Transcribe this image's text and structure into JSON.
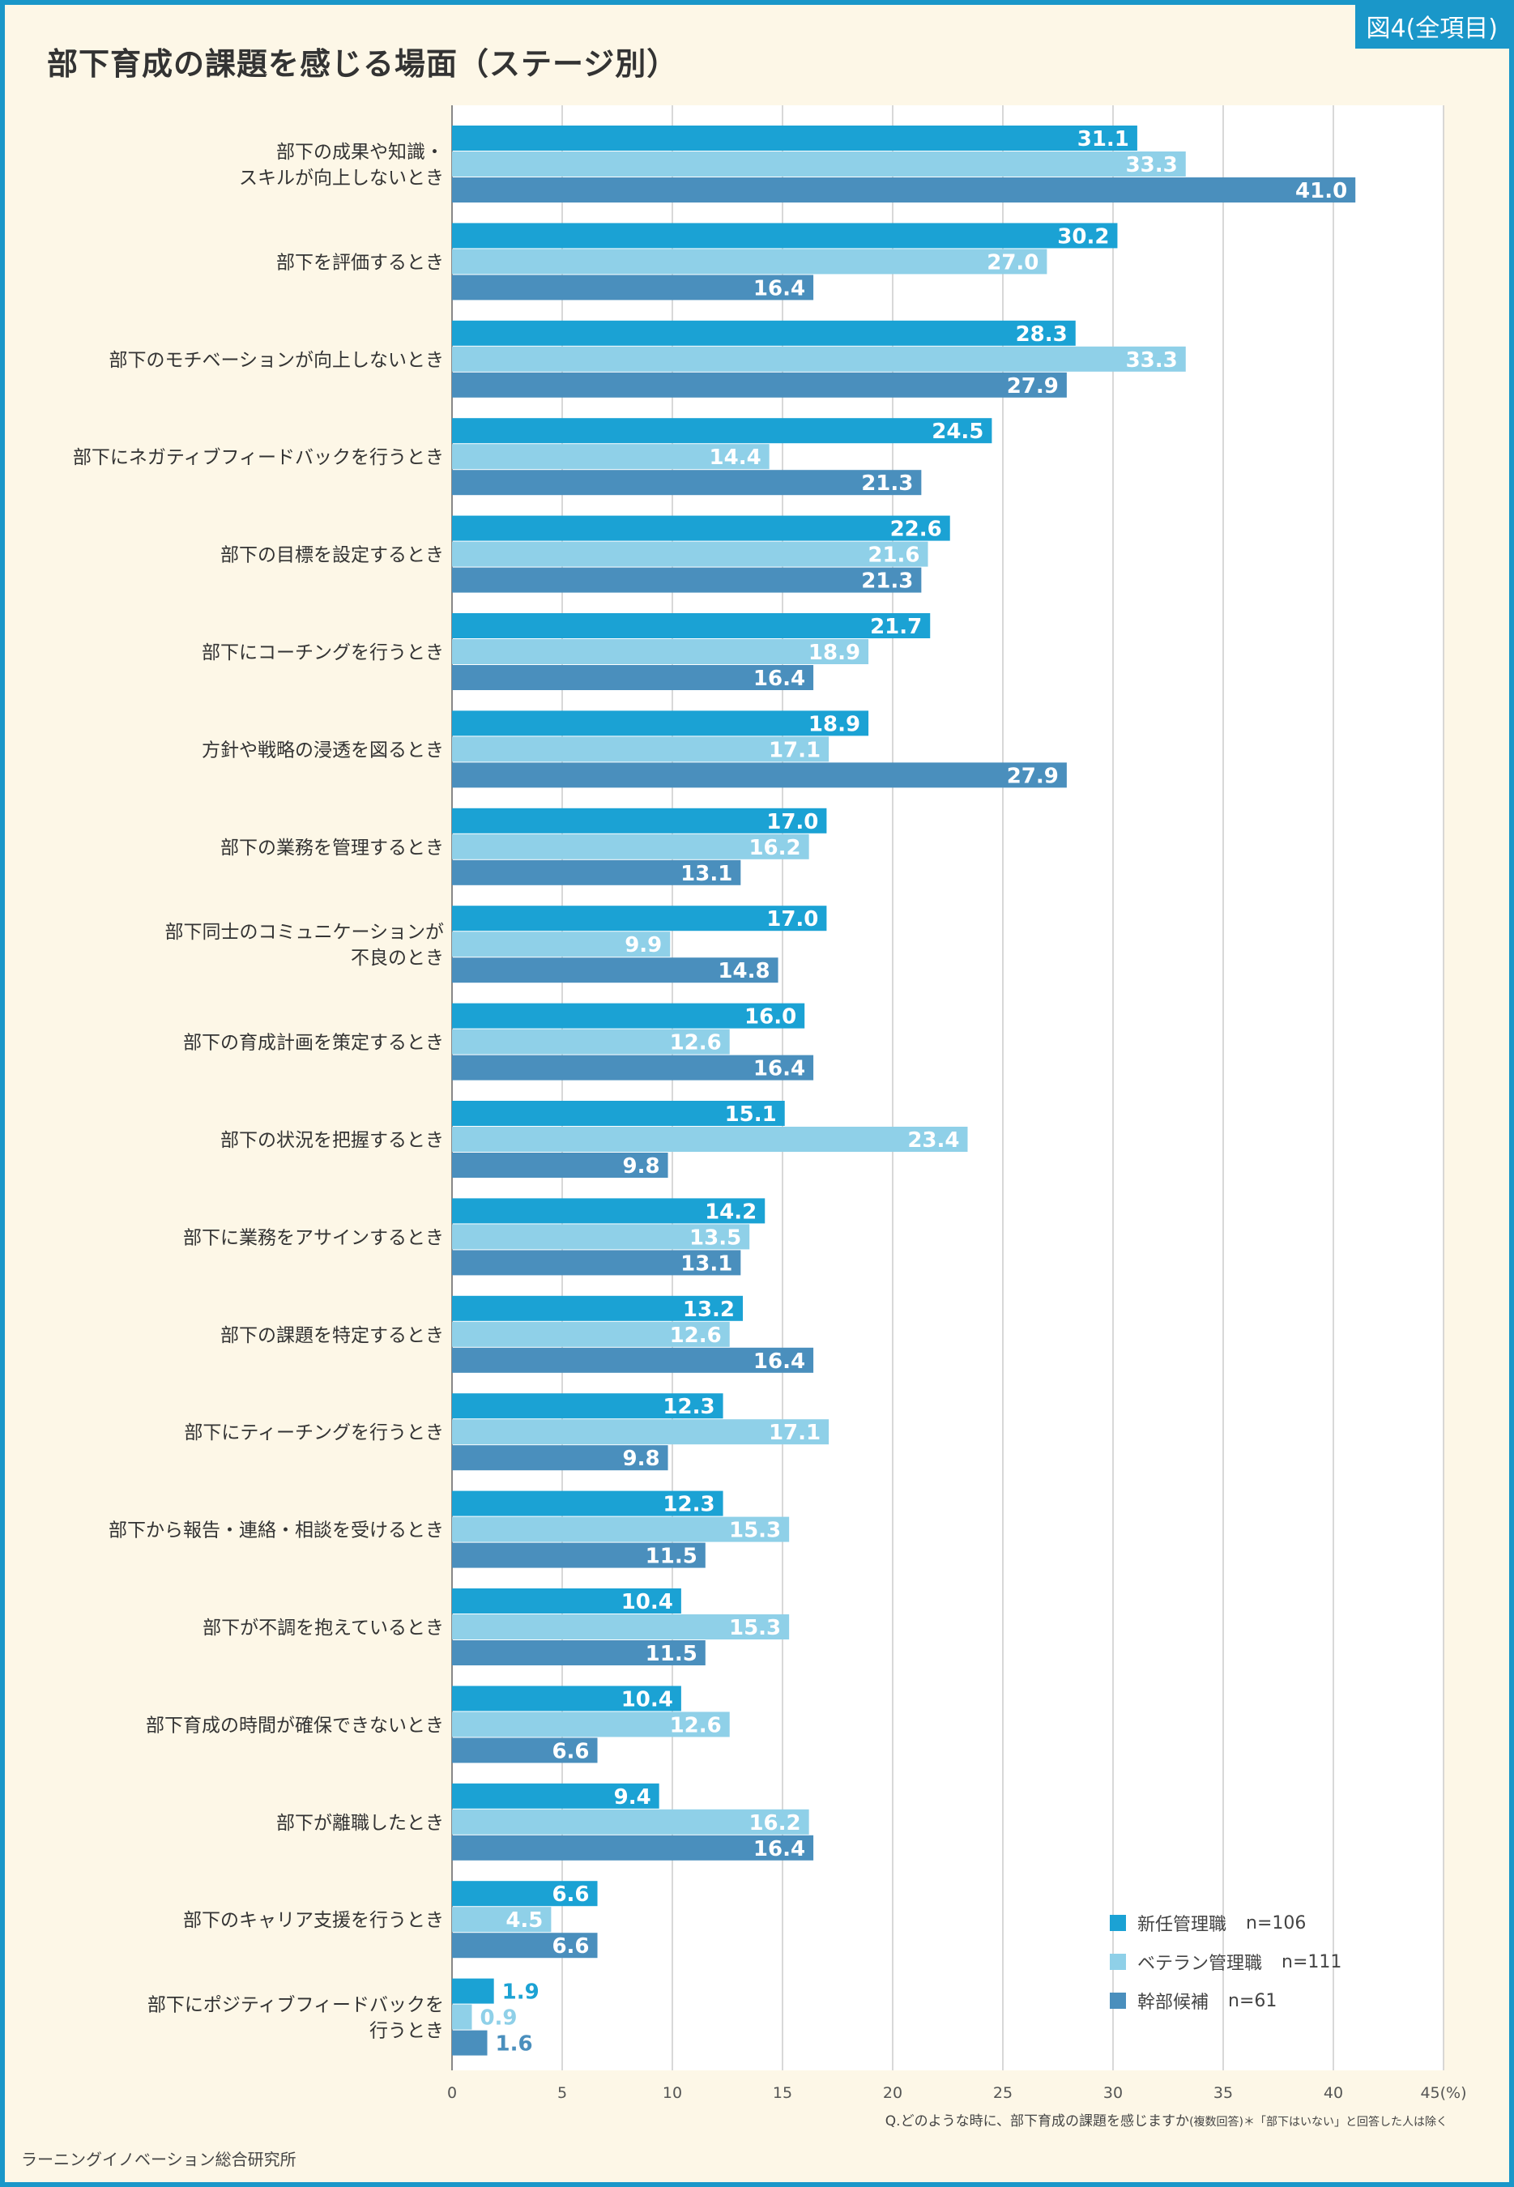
{
  "badge": "図4(全項目)",
  "title": "部下育成の課題を感じる場面（ステージ別）",
  "source": "ラーニングイノベーション総合研究所",
  "footnote": {
    "question": "Q.どのような時に、部下育成の課題を感じますか",
    "note": "(複数回答)＊「部下はいない」と回答した人は除く"
  },
  "colors": {
    "background": "#fdf7e7",
    "border": "#1a97c9",
    "new_manager": "#1ba2d4",
    "veteran_manager": "#8fd0e8",
    "candidate": "#4a8fbd",
    "grid": "#cccccc"
  },
  "legend": [
    {
      "label": "新任管理職",
      "n": "n=106"
    },
    {
      "label": "ベテラン管理職",
      "n": "n=111"
    },
    {
      "label": "幹部候補",
      "n": "n=61"
    }
  ],
  "chart_data": {
    "type": "bar",
    "orientation": "horizontal",
    "title": "部下育成の課題を感じる場面（ステージ別）",
    "unit_label": "(%)",
    "xlim": [
      0,
      45
    ],
    "ticks": [
      0,
      5,
      10,
      15,
      20,
      25,
      30,
      35,
      40,
      45
    ],
    "grid": true,
    "legend_position": "bottom-right",
    "categories": [
      [
        "部下の成果や知識・",
        "スキルが向上しないとき"
      ],
      [
        "部下を評価するとき"
      ],
      [
        "部下のモチベーションが向上しないとき"
      ],
      [
        "部下にネガティブフィードバックを行うとき"
      ],
      [
        "部下の目標を設定するとき"
      ],
      [
        "部下にコーチングを行うとき"
      ],
      [
        "方針や戦略の浸透を図るとき"
      ],
      [
        "部下の業務を管理するとき"
      ],
      [
        "部下同士のコミュニケーションが",
        "不良のとき"
      ],
      [
        "部下の育成計画を策定するとき"
      ],
      [
        "部下の状況を把握するとき"
      ],
      [
        "部下に業務をアサインするとき"
      ],
      [
        "部下の課題を特定するとき"
      ],
      [
        "部下にティーチングを行うとき"
      ],
      [
        "部下から報告・連絡・相談を受けるとき"
      ],
      [
        "部下が不調を抱えているとき"
      ],
      [
        "部下育成の時間が確保できないとき"
      ],
      [
        "部下が離職したとき"
      ],
      [
        "部下のキャリア支援を行うとき"
      ],
      [
        "部下にポジティブフィードバックを",
        "行うとき"
      ]
    ],
    "series": [
      {
        "name": "新任管理職",
        "n": "n=106",
        "color": "#1ba2d4",
        "values": [
          31.1,
          30.2,
          28.3,
          24.5,
          22.6,
          21.7,
          18.9,
          17.0,
          17.0,
          16.0,
          15.1,
          14.2,
          13.2,
          12.3,
          12.3,
          10.4,
          10.4,
          9.4,
          6.6,
          1.9
        ]
      },
      {
        "name": "ベテラン管理職",
        "n": "n=111",
        "color": "#8fd0e8",
        "values": [
          33.3,
          27.0,
          33.3,
          14.4,
          21.6,
          18.9,
          17.1,
          16.2,
          9.9,
          12.6,
          23.4,
          13.5,
          12.6,
          17.1,
          15.3,
          15.3,
          12.6,
          16.2,
          4.5,
          0.9
        ]
      },
      {
        "name": "幹部候補",
        "n": "n=61",
        "color": "#4a8fbd",
        "values": [
          41.0,
          16.4,
          27.9,
          21.3,
          21.3,
          16.4,
          27.9,
          13.1,
          14.8,
          16.4,
          9.8,
          13.1,
          16.4,
          9.8,
          11.5,
          11.5,
          6.6,
          16.4,
          6.6,
          1.6
        ]
      }
    ]
  }
}
